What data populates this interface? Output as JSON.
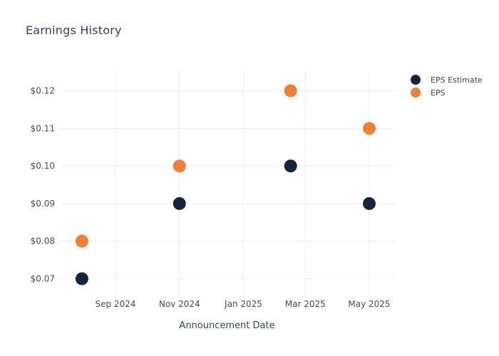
{
  "chart_data": {
    "type": "scatter",
    "title": "Earnings History",
    "xlabel": "Announcement Date",
    "ylabel": "",
    "grid": true,
    "legend_position": "right",
    "y_range": [
      0.065,
      0.1255
    ],
    "x_range": [
      "2024-07-10",
      "2025-05-25"
    ],
    "y_ticks": [
      {
        "value": 0.07,
        "label": "$0.07"
      },
      {
        "value": 0.08,
        "label": "$0.08"
      },
      {
        "value": 0.09,
        "label": "$0.09"
      },
      {
        "value": 0.1,
        "label": "$0.10"
      },
      {
        "value": 0.11,
        "label": "$0.11"
      },
      {
        "value": 0.12,
        "label": "$0.12"
      }
    ],
    "x_ticks": [
      {
        "date": "2024-09-01",
        "label": "Sep 2024"
      },
      {
        "date": "2024-11-01",
        "label": "Nov 2024"
      },
      {
        "date": "2025-01-01",
        "label": "Jan 2025"
      },
      {
        "date": "2025-03-01",
        "label": "Mar 2025"
      },
      {
        "date": "2025-05-01",
        "label": "May 2025"
      }
    ],
    "series": [
      {
        "name": "EPS Estimate",
        "color": "#16243e",
        "points": [
          {
            "date": "2024-07-31",
            "value": 0.07
          },
          {
            "date": "2024-11-01",
            "value": 0.09
          },
          {
            "date": "2025-02-15",
            "value": 0.1
          },
          {
            "date": "2025-05-01",
            "value": 0.09
          }
        ]
      },
      {
        "name": "EPS",
        "color": "#ef8035",
        "points": [
          {
            "date": "2024-07-31",
            "value": 0.08
          },
          {
            "date": "2024-11-01",
            "value": 0.1
          },
          {
            "date": "2025-02-15",
            "value": 0.12
          },
          {
            "date": "2025-05-01",
            "value": 0.11
          }
        ]
      }
    ]
  },
  "legend": {
    "items": [
      {
        "label": "EPS Estimate",
        "color": "#16243e"
      },
      {
        "label": "EPS",
        "color": "#ef8035"
      }
    ]
  }
}
